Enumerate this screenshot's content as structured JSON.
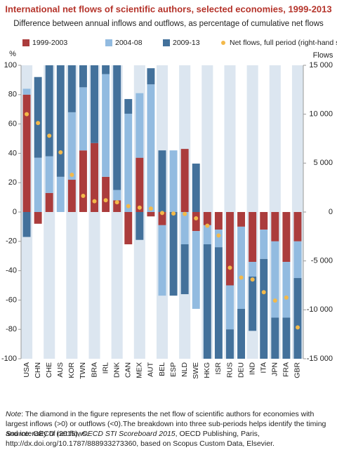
{
  "chart_data": {
    "type": "bar",
    "stacked": true,
    "title": "International net flows of scientific authors, selected economies, 1999-2013",
    "subtitle": "Difference between annual inflows and outflows, as percentage of cumulative net flows",
    "y_label": "%",
    "y2_label": "Flows",
    "categories": [
      "USA",
      "CHN",
      "CHE",
      "AUS",
      "KOR",
      "TWN",
      "BRA",
      "IRL",
      "DNK",
      "CAN",
      "MEX",
      "AUT",
      "BEL",
      "ESP",
      "NLD",
      "SWE",
      "HKG",
      "ISR",
      "RUS",
      "DEU",
      "IND",
      "ITA",
      "JPN",
      "FRA",
      "GBR"
    ],
    "series": [
      {
        "name": "1999-2003",
        "color": "#ab3c3c",
        "values": [
          80,
          -8,
          13,
          0,
          22,
          42,
          47,
          24,
          8,
          -22,
          37,
          -3,
          -9,
          0,
          43,
          -13,
          -9,
          -12,
          -50,
          -10,
          -34,
          -12,
          -20,
          -34,
          -20
        ]
      },
      {
        "name": "2004-08",
        "color": "#92bbe0",
        "values": [
          4,
          37,
          25,
          24,
          46,
          43,
          0,
          70,
          7,
          67,
          44,
          87,
          -48,
          42,
          -22,
          -53,
          -13,
          -12,
          -30,
          -56,
          -10,
          -20,
          -52,
          -38,
          -25
        ]
      },
      {
        "name": "2009-13",
        "color": "#43719b",
        "values": [
          -17,
          55,
          62,
          76,
          32,
          15,
          53,
          6,
          85,
          10,
          -19,
          11,
          42,
          -57,
          -34,
          33,
          -78,
          -76,
          -20,
          -34,
          -37,
          -68,
          -28,
          -28,
          -55
        ]
      },
      {
        "name": "Net flows, full period (right-hand scale)",
        "type": "scatter",
        "axis": "y2",
        "color": "#f3b94a",
        "values": [
          10000,
          9100,
          7800,
          6100,
          3800,
          1650,
          1100,
          1200,
          1000,
          600,
          450,
          350,
          -100,
          -150,
          -200,
          -650,
          -1400,
          -2400,
          -5700,
          -6700,
          -6900,
          -8200,
          -9050,
          -8750,
          -11800
        ]
      }
    ],
    "ylim": [
      -100,
      100
    ],
    "yticks": [
      -100,
      -80,
      -60,
      -40,
      -20,
      0,
      20,
      40,
      60,
      80,
      100
    ],
    "y2lim": [
      -15000,
      15000
    ],
    "y2ticks": [
      {
        "value": -15000,
        "label": "-15 000"
      },
      {
        "value": -10000,
        "label": "-10 000"
      },
      {
        "value": -5000,
        "label": "-5 000"
      },
      0,
      {
        "value": 5000,
        "label": "5 000"
      },
      {
        "value": 10000,
        "label": "10 000"
      },
      {
        "value": 15000,
        "label": "15 000"
      }
    ],
    "grid": false
  },
  "note": {
    "label": "Note",
    "text": ": The diamond in the figure represents the net flow of scientific authors for economies with largest inflows (>0) or outflows (<0).The breakdown into three sub-periods helps identify the timing and intensity of net flows."
  },
  "source": {
    "label": "Source",
    "text1": ": OECD (2015), ",
    "title": "OECD STI Scoreboard 2015",
    "text2": ", OECD Publishing, Paris, http://dx.doi.org/10.1787/888933273360, based on Scopus Custom Data, Elsevier."
  }
}
